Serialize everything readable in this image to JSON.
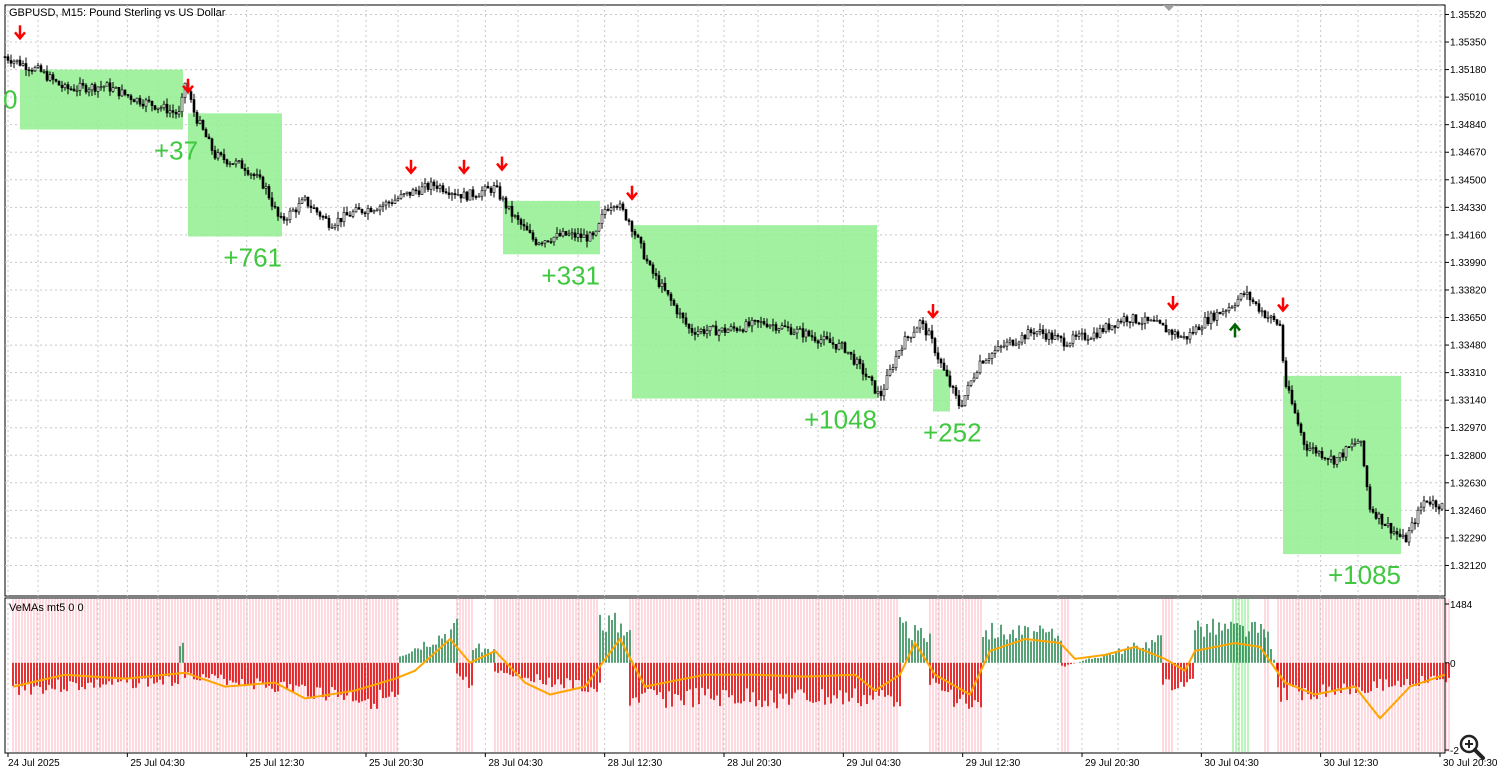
{
  "window": {
    "title": "GBPUSD, M15:  Pound Sterling vs US Dollar",
    "indicator_label": "VeMAs mt5 0 0"
  },
  "colors": {
    "background": "#ffffff",
    "grid": "#c8c8c8",
    "candle": "#000000",
    "zone_fill": "#90ee90",
    "result_text": "#3fc83f",
    "sell_arrow": "#ff0000",
    "buy_arrow": "#006400",
    "hist_negative": "#e00000",
    "hist_positive": "#2e8b57",
    "bg_sell": "#ffc0cb",
    "bg_buy": "#90ee90",
    "ma_line": "#ffa500"
  },
  "icons": {
    "sell_signal": "red-down-arrow-icon",
    "buy_signal": "green-up-arrow-icon",
    "zoom": "magnifier-plus-icon",
    "scroll_marker": "gray-triangle-icon"
  },
  "chart_data": [
    {
      "type": "candlestick",
      "symbol": "GBPUSD",
      "timeframe": "M15",
      "ylim": [
        1.3195,
        1.3556
      ],
      "y_ticks": [
        "1.35520",
        "1.35350",
        "1.35180",
        "1.35010",
        "1.34840",
        "1.34670",
        "1.34500",
        "1.34330",
        "1.34160",
        "1.33990",
        "1.33820",
        "1.33650",
        "1.33480",
        "1.33310",
        "1.33140",
        "1.32970",
        "1.32800",
        "1.32630",
        "1.32460",
        "1.32290",
        "1.32120"
      ],
      "x_ticks": [
        "24 Jul 2025",
        "25 Jul 04:30",
        "25 Jul 12:30",
        "25 Jul 20:30",
        "28 Jul 04:30",
        "28 Jul 12:30",
        "28 Jul 20:30",
        "29 Jul 04:30",
        "29 Jul 12:30",
        "29 Jul 20:30",
        "30 Jul 04:30",
        "30 Jul 12:30",
        "30 Jul 20:30"
      ],
      "grid": true,
      "price_path": [
        {
          "t": 0,
          "p": 1.3526
        },
        {
          "t": 0.035,
          "p": 1.3517
        },
        {
          "t": 0.06,
          "p": 1.3506
        },
        {
          "t": 0.1,
          "p": 1.3508
        },
        {
          "t": 0.13,
          "p": 1.35
        },
        {
          "t": 0.16,
          "p": 1.3494
        },
        {
          "t": 0.175,
          "p": 1.349
        },
        {
          "t": 0.18,
          "p": 1.351
        },
        {
          "t": 0.19,
          "p": 1.349
        },
        {
          "t": 0.21,
          "p": 1.3465
        },
        {
          "t": 0.24,
          "p": 1.3458
        },
        {
          "t": 0.26,
          "p": 1.3446
        },
        {
          "t": 0.275,
          "p": 1.3424
        },
        {
          "t": 0.3,
          "p": 1.3437
        },
        {
          "t": 0.325,
          "p": 1.3423
        },
        {
          "t": 0.35,
          "p": 1.343
        },
        {
          "t": 0.38,
          "p": 1.3435
        },
        {
          "t": 0.41,
          "p": 1.3443
        },
        {
          "t": 0.43,
          "p": 1.3447
        },
        {
          "t": 0.46,
          "p": 1.344
        },
        {
          "t": 0.49,
          "p": 1.3445
        },
        {
          "t": 0.505,
          "p": 1.343
        },
        {
          "t": 0.53,
          "p": 1.3412
        },
        {
          "t": 0.56,
          "p": 1.3416
        },
        {
          "t": 0.59,
          "p": 1.3414
        },
        {
          "t": 0.6,
          "p": 1.3432
        },
        {
          "t": 0.61,
          "p": 1.3437
        },
        {
          "t": 0.625,
          "p": 1.3424
        },
        {
          "t": 0.645,
          "p": 1.3395
        },
        {
          "t": 0.665,
          "p": 1.3376
        },
        {
          "t": 0.685,
          "p": 1.3357
        },
        {
          "t": 0.72,
          "p": 1.3357
        },
        {
          "t": 0.76,
          "p": 1.3362
        },
        {
          "t": 0.8,
          "p": 1.3355
        },
        {
          "t": 0.84,
          "p": 1.3346
        },
        {
          "t": 0.86,
          "p": 1.333
        },
        {
          "t": 0.875,
          "p": 1.3316
        },
        {
          "t": 0.895,
          "p": 1.3347
        },
        {
          "t": 0.915,
          "p": 1.3362
        },
        {
          "t": 0.925,
          "p": 1.3353
        },
        {
          "t": 0.94,
          "p": 1.333
        },
        {
          "t": 0.955,
          "p": 1.331
        },
        {
          "t": 0.975,
          "p": 1.3338
        },
        {
          "t": 1.0,
          "p": 1.3348
        },
        {
          "t": 1.03,
          "p": 1.3357
        },
        {
          "t": 1.06,
          "p": 1.335
        },
        {
          "t": 1.09,
          "p": 1.3355
        },
        {
          "t": 1.12,
          "p": 1.3365
        },
        {
          "t": 1.15,
          "p": 1.3361
        },
        {
          "t": 1.18,
          "p": 1.3352
        },
        {
          "t": 1.2,
          "p": 1.3363
        },
        {
          "t": 1.225,
          "p": 1.3372
        },
        {
          "t": 1.24,
          "p": 1.338
        },
        {
          "t": 1.26,
          "p": 1.3367
        },
        {
          "t": 1.275,
          "p": 1.336
        },
        {
          "t": 1.28,
          "p": 1.3325
        },
        {
          "t": 1.3,
          "p": 1.3286
        },
        {
          "t": 1.33,
          "p": 1.3277
        },
        {
          "t": 1.355,
          "p": 1.329
        },
        {
          "t": 1.365,
          "p": 1.3248
        },
        {
          "t": 1.38,
          "p": 1.3238
        },
        {
          "t": 1.4,
          "p": 1.3227
        },
        {
          "t": 1.42,
          "p": 1.3253
        },
        {
          "t": 1.44,
          "p": 1.3248
        }
      ],
      "trade_zones": [
        {
          "label": "0",
          "start": 0.015,
          "end": 0.178,
          "top": 1.3518,
          "bottom": 1.3481
        },
        {
          "label": "+37",
          "start": 0.183,
          "end": 0.277,
          "top": 1.3491,
          "bottom": 1.3415
        },
        {
          "label": "+761",
          "start": 0.183,
          "end": 0.277,
          "top": 1.3491,
          "bottom": 1.3415
        },
        {
          "label": "+331",
          "start": 0.498,
          "end": 0.595,
          "top": 1.3437,
          "bottom": 1.3404
        },
        {
          "label": "+1048",
          "start": 0.627,
          "end": 0.872,
          "top": 1.3422,
          "bottom": 1.3315
        },
        {
          "label": "+252",
          "start": 0.928,
          "end": 0.945,
          "top": 1.3333,
          "bottom": 1.3307
        },
        {
          "label": "+1085",
          "start": 1.278,
          "end": 1.396,
          "top": 1.3329,
          "bottom": 1.3219
        }
      ],
      "signals": [
        {
          "type": "sell",
          "t": 0.015,
          "p": 1.3541
        },
        {
          "type": "sell",
          "t": 0.183,
          "p": 1.3508
        },
        {
          "type": "sell",
          "t": 0.406,
          "p": 1.3458
        },
        {
          "type": "sell",
          "t": 0.459,
          "p": 1.3458
        },
        {
          "type": "sell",
          "t": 0.497,
          "p": 1.346
        },
        {
          "type": "sell",
          "t": 0.627,
          "p": 1.3442
        },
        {
          "type": "sell",
          "t": 0.928,
          "p": 1.3369
        },
        {
          "type": "sell",
          "t": 1.168,
          "p": 1.3374
        },
        {
          "type": "buy",
          "t": 1.23,
          "p": 1.3357
        },
        {
          "type": "sell",
          "t": 1.278,
          "p": 1.3373
        }
      ]
    },
    {
      "type": "histogram",
      "name": "VeMAs mt5 0 0",
      "ylim": [
        -2200,
        1484
      ],
      "y_ticks": [
        "1484",
        "0",
        "-2"
      ],
      "sell_background_spans": [
        [
          0.008,
          0.395
        ],
        [
          0.452,
          0.468
        ],
        [
          0.49,
          0.595
        ],
        [
          0.625,
          0.895
        ],
        [
          0.925,
          0.978
        ],
        [
          1.057,
          1.065
        ],
        [
          1.158,
          1.168
        ],
        [
          1.26,
          1.265
        ],
        [
          1.273,
          1.445
        ]
      ],
      "buy_background_spans": [
        [
          1.228,
          1.245
        ]
      ],
      "histogram_segments": [
        {
          "start": 0.008,
          "end": 0.175,
          "from": -650,
          "to": -450
        },
        {
          "start": 0.175,
          "end": 0.178,
          "from": 400,
          "to": 400
        },
        {
          "start": 0.18,
          "end": 0.395,
          "from": -300,
          "to": -1000
        },
        {
          "start": 0.395,
          "end": 0.452,
          "from": 200,
          "to": 900
        },
        {
          "start": 0.452,
          "end": 0.468,
          "from": -300,
          "to": -600
        },
        {
          "start": 0.468,
          "end": 0.49,
          "from": 400,
          "to": 300
        },
        {
          "start": 0.49,
          "end": 0.595,
          "from": -200,
          "to": -700
        },
        {
          "start": 0.595,
          "end": 0.625,
          "from": 1100,
          "to": 900
        },
        {
          "start": 0.625,
          "end": 0.895,
          "from": -900,
          "to": -900
        },
        {
          "start": 0.895,
          "end": 0.925,
          "from": 900,
          "to": 600
        },
        {
          "start": 0.925,
          "end": 0.978,
          "from": -500,
          "to": -1300
        },
        {
          "start": 0.978,
          "end": 1.057,
          "from": 800,
          "to": 700
        },
        {
          "start": 1.057,
          "end": 1.158,
          "from": -100,
          "to": 600
        },
        {
          "start": 1.158,
          "end": 1.19,
          "from": -600,
          "to": -500
        },
        {
          "start": 1.19,
          "end": 1.26,
          "from": 900,
          "to": 800
        },
        {
          "start": 1.26,
          "end": 1.273,
          "from": 900,
          "to": -300
        },
        {
          "start": 1.273,
          "end": 1.445,
          "from": -800,
          "to": -400
        }
      ],
      "ma_line": [
        {
          "t": 0.008,
          "v": -600
        },
        {
          "t": 0.06,
          "v": -300
        },
        {
          "t": 0.12,
          "v": -400
        },
        {
          "t": 0.18,
          "v": -250
        },
        {
          "t": 0.22,
          "v": -600
        },
        {
          "t": 0.27,
          "v": -500
        },
        {
          "t": 0.3,
          "v": -900
        },
        {
          "t": 0.35,
          "v": -700
        },
        {
          "t": 0.39,
          "v": -400
        },
        {
          "t": 0.41,
          "v": -200
        },
        {
          "t": 0.445,
          "v": 600
        },
        {
          "t": 0.465,
          "v": 0
        },
        {
          "t": 0.49,
          "v": 300
        },
        {
          "t": 0.52,
          "v": -500
        },
        {
          "t": 0.545,
          "v": -800
        },
        {
          "t": 0.58,
          "v": -600
        },
        {
          "t": 0.615,
          "v": 600
        },
        {
          "t": 0.64,
          "v": -600
        },
        {
          "t": 0.7,
          "v": -300
        },
        {
          "t": 0.75,
          "v": -300
        },
        {
          "t": 0.8,
          "v": -350
        },
        {
          "t": 0.85,
          "v": -300
        },
        {
          "t": 0.87,
          "v": -700
        },
        {
          "t": 0.895,
          "v": -300
        },
        {
          "t": 0.91,
          "v": 500
        },
        {
          "t": 0.93,
          "v": -300
        },
        {
          "t": 0.965,
          "v": -800
        },
        {
          "t": 0.985,
          "v": 300
        },
        {
          "t": 1.02,
          "v": 600
        },
        {
          "t": 1.055,
          "v": 500
        },
        {
          "t": 1.07,
          "v": 100
        },
        {
          "t": 1.1,
          "v": 200
        },
        {
          "t": 1.13,
          "v": 400
        },
        {
          "t": 1.16,
          "v": 100
        },
        {
          "t": 1.18,
          "v": -200
        },
        {
          "t": 1.19,
          "v": 300
        },
        {
          "t": 1.23,
          "v": 500
        },
        {
          "t": 1.255,
          "v": 400
        },
        {
          "t": 1.28,
          "v": -500
        },
        {
          "t": 1.31,
          "v": -800
        },
        {
          "t": 1.35,
          "v": -600
        },
        {
          "t": 1.375,
          "v": -1400
        },
        {
          "t": 1.405,
          "v": -600
        },
        {
          "t": 1.44,
          "v": -300
        }
      ]
    }
  ]
}
